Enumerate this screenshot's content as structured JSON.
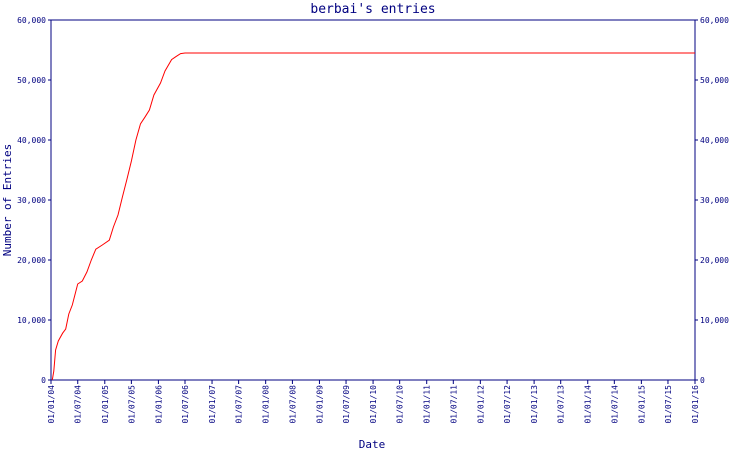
{
  "chart_data": {
    "type": "line",
    "title": "berbai's entries",
    "xlabel": "Date",
    "ylabel": "Number of Entries",
    "ylim": [
      0,
      60000
    ],
    "x_range": [
      "2004-01-01",
      "2016-01-01"
    ],
    "y_ticks": [
      {
        "value": 0,
        "label": "0"
      },
      {
        "value": 10000,
        "label": "10,000"
      },
      {
        "value": 20000,
        "label": "20,000"
      },
      {
        "value": 30000,
        "label": "30,000"
      },
      {
        "value": 40000,
        "label": "40,000"
      },
      {
        "value": 50000,
        "label": "50,000"
      },
      {
        "value": 60000,
        "label": "60,000"
      }
    ],
    "x_ticks": [
      {
        "date": "2004-01-01",
        "label": "01/01/04"
      },
      {
        "date": "2004-07-01",
        "label": "01/07/04"
      },
      {
        "date": "2005-01-01",
        "label": "01/01/05"
      },
      {
        "date": "2005-07-01",
        "label": "01/07/05"
      },
      {
        "date": "2006-01-01",
        "label": "01/01/06"
      },
      {
        "date": "2006-07-01",
        "label": "01/07/06"
      },
      {
        "date": "2007-01-01",
        "label": "01/01/07"
      },
      {
        "date": "2007-07-01",
        "label": "01/07/07"
      },
      {
        "date": "2008-01-01",
        "label": "01/01/08"
      },
      {
        "date": "2008-07-01",
        "label": "01/07/08"
      },
      {
        "date": "2009-01-01",
        "label": "01/01/09"
      },
      {
        "date": "2009-07-01",
        "label": "01/07/09"
      },
      {
        "date": "2010-01-01",
        "label": "01/01/10"
      },
      {
        "date": "2010-07-01",
        "label": "01/07/10"
      },
      {
        "date": "2011-01-01",
        "label": "01/01/11"
      },
      {
        "date": "2011-07-01",
        "label": "01/07/11"
      },
      {
        "date": "2012-01-01",
        "label": "01/01/12"
      },
      {
        "date": "2012-07-01",
        "label": "01/07/12"
      },
      {
        "date": "2013-01-01",
        "label": "01/01/13"
      },
      {
        "date": "2013-07-01",
        "label": "01/07/13"
      },
      {
        "date": "2014-01-01",
        "label": "01/01/14"
      },
      {
        "date": "2014-07-01",
        "label": "01/07/14"
      },
      {
        "date": "2015-01-01",
        "label": "01/01/15"
      },
      {
        "date": "2015-07-01",
        "label": "01/07/15"
      },
      {
        "date": "2016-01-01",
        "label": "01/01/16"
      }
    ],
    "series": [
      {
        "color": "#ff0000",
        "points": [
          {
            "x": "2004-01-10",
            "y": 0
          },
          {
            "x": "2004-01-20",
            "y": 1500
          },
          {
            "x": "2004-02-01",
            "y": 5000
          },
          {
            "x": "2004-02-20",
            "y": 6500
          },
          {
            "x": "2004-03-20",
            "y": 7800
          },
          {
            "x": "2004-04-10",
            "y": 8500
          },
          {
            "x": "2004-05-01",
            "y": 11000
          },
          {
            "x": "2004-05-25",
            "y": 12500
          },
          {
            "x": "2004-06-15",
            "y": 14500
          },
          {
            "x": "2004-07-01",
            "y": 16000
          },
          {
            "x": "2004-08-01",
            "y": 16500
          },
          {
            "x": "2004-09-01",
            "y": 18000
          },
          {
            "x": "2004-10-01",
            "y": 20000
          },
          {
            "x": "2004-11-01",
            "y": 21800
          },
          {
            "x": "2004-12-15",
            "y": 22500
          },
          {
            "x": "2005-02-01",
            "y": 23300
          },
          {
            "x": "2005-03-01",
            "y": 25500
          },
          {
            "x": "2005-04-01",
            "y": 27500
          },
          {
            "x": "2005-05-01",
            "y": 30500
          },
          {
            "x": "2005-06-01",
            "y": 33500
          },
          {
            "x": "2005-07-01",
            "y": 36500
          },
          {
            "x": "2005-08-01",
            "y": 40000
          },
          {
            "x": "2005-09-01",
            "y": 42700
          },
          {
            "x": "2005-10-01",
            "y": 43800
          },
          {
            "x": "2005-11-01",
            "y": 45000
          },
          {
            "x": "2005-12-01",
            "y": 47500
          },
          {
            "x": "2006-01-15",
            "y": 49500
          },
          {
            "x": "2006-02-15",
            "y": 51500
          },
          {
            "x": "2006-04-01",
            "y": 53400
          },
          {
            "x": "2006-05-01",
            "y": 53900
          },
          {
            "x": "2006-06-01",
            "y": 54400
          },
          {
            "x": "2006-07-01",
            "y": 54500
          },
          {
            "x": "2016-01-01",
            "y": 54500
          }
        ]
      }
    ]
  }
}
